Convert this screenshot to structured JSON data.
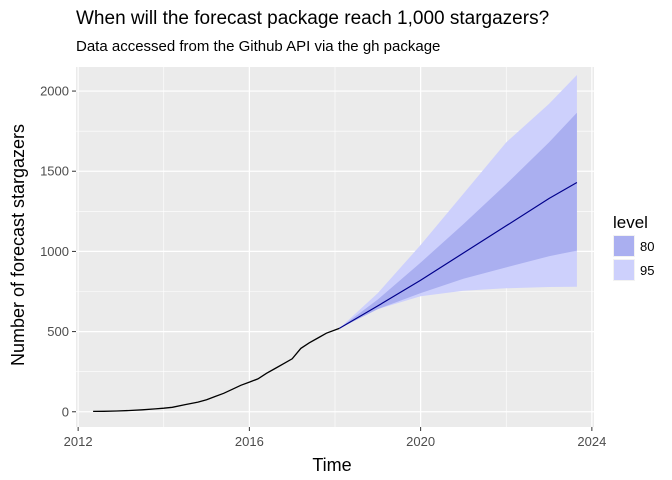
{
  "chart_data": {
    "type": "line",
    "title": "When will the forecast package reach 1,000 stargazers?",
    "subtitle": "Data accessed from the Github API via the gh package",
    "xlabel": "Time",
    "ylabel": "Number of forecast stargazers",
    "xlim": [
      2011.95,
      2024.05
    ],
    "ylim": [
      -95,
      2150
    ],
    "x_ticks": [
      2012,
      2016,
      2020,
      2024
    ],
    "y_ticks": [
      0,
      500,
      1000,
      1500,
      2000
    ],
    "grid": true,
    "legend": {
      "title": "level",
      "position": "right",
      "entries": [
        "80",
        "95"
      ]
    },
    "colors": {
      "panel": "#ebebeb",
      "grid": "#ffffff",
      "history": "#000000",
      "forecast_line": "#00008b",
      "band_80": "#aaaff0",
      "band_95": "#cdd0fc"
    },
    "series": [
      {
        "kind": "history",
        "x": [
          2012.35,
          2012.6,
          2012.9,
          2013.2,
          2013.5,
          2013.8,
          2014.0,
          2014.2,
          2014.5,
          2014.8,
          2015.0,
          2015.2,
          2015.4,
          2015.6,
          2015.8,
          2016.0,
          2016.2,
          2016.4,
          2016.6,
          2016.8,
          2017.0,
          2017.2,
          2017.4,
          2017.6,
          2017.8,
          2018.1
        ],
        "y": [
          2,
          3,
          5,
          8,
          12,
          18,
          22,
          28,
          45,
          60,
          75,
          95,
          115,
          140,
          165,
          185,
          205,
          240,
          270,
          300,
          330,
          395,
          430,
          460,
          490,
          520
        ]
      },
      {
        "kind": "forecast",
        "level": "80",
        "x": [
          2018.1,
          2019.0,
          2020.0,
          2021.0,
          2022.0,
          2023.0,
          2023.65
        ],
        "mean": [
          520,
          660,
          820,
          990,
          1160,
          1330,
          1430
        ],
        "lower": [
          520,
          640,
          740,
          830,
          900,
          970,
          1005
        ],
        "upper": [
          520,
          700,
          930,
          1170,
          1420,
          1680,
          1865
        ]
      },
      {
        "kind": "forecast",
        "level": "95",
        "x": [
          2018.1,
          2019.0,
          2020.0,
          2021.0,
          2022.0,
          2023.0,
          2023.65
        ],
        "lower": [
          520,
          640,
          720,
          755,
          770,
          778,
          780
        ],
        "upper": [
          520,
          740,
          1040,
          1360,
          1680,
          1920,
          2100
        ]
      }
    ]
  }
}
